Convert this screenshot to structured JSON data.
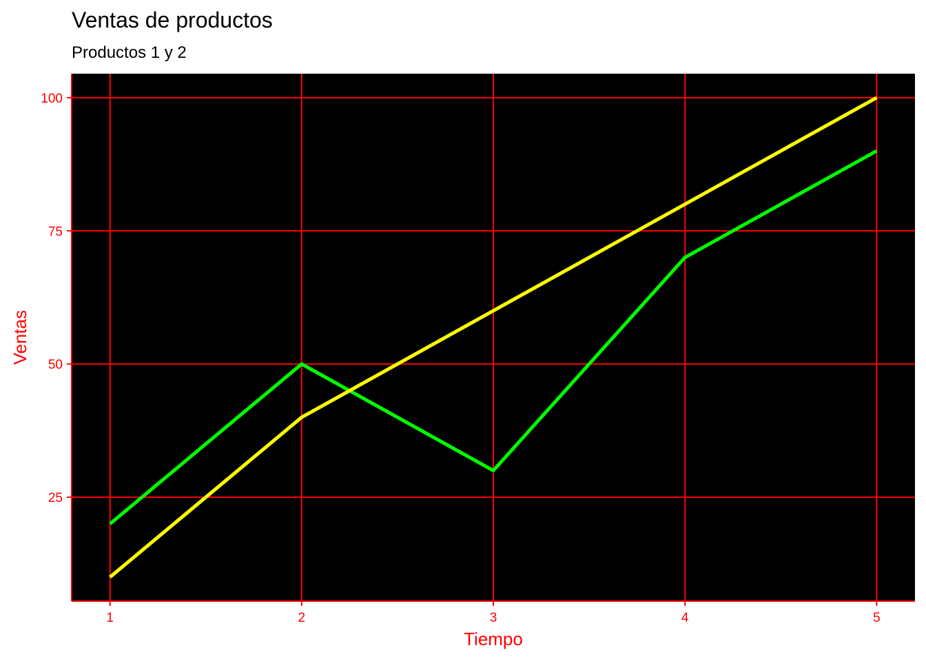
{
  "chart_data": {
    "type": "line",
    "title": "Ventas de productos",
    "subtitle": "Productos 1 y 2",
    "xlabel": "Tiempo",
    "ylabel": "Ventas",
    "x": [
      1,
      2,
      3,
      4,
      5
    ],
    "x_ticks": [
      "1",
      "2",
      "3",
      "4",
      "5"
    ],
    "y_ticks": [
      "25",
      "50",
      "75",
      "100"
    ],
    "xlim": [
      0.8,
      5.2
    ],
    "ylim": [
      5.5,
      104.5
    ],
    "grid": true,
    "legend": "none",
    "series": [
      {
        "values": [
          20,
          50,
          30,
          70,
          90
        ],
        "color": "#00ff00"
      },
      {
        "values": [
          10,
          40,
          60,
          80,
          100
        ],
        "color": "#ffff00"
      }
    ],
    "colors": {
      "panel_background": "#000000",
      "grid": "#ff0000",
      "axis_text": "#ff0000",
      "axis_title": "#ff0000",
      "title": "#000000"
    }
  }
}
